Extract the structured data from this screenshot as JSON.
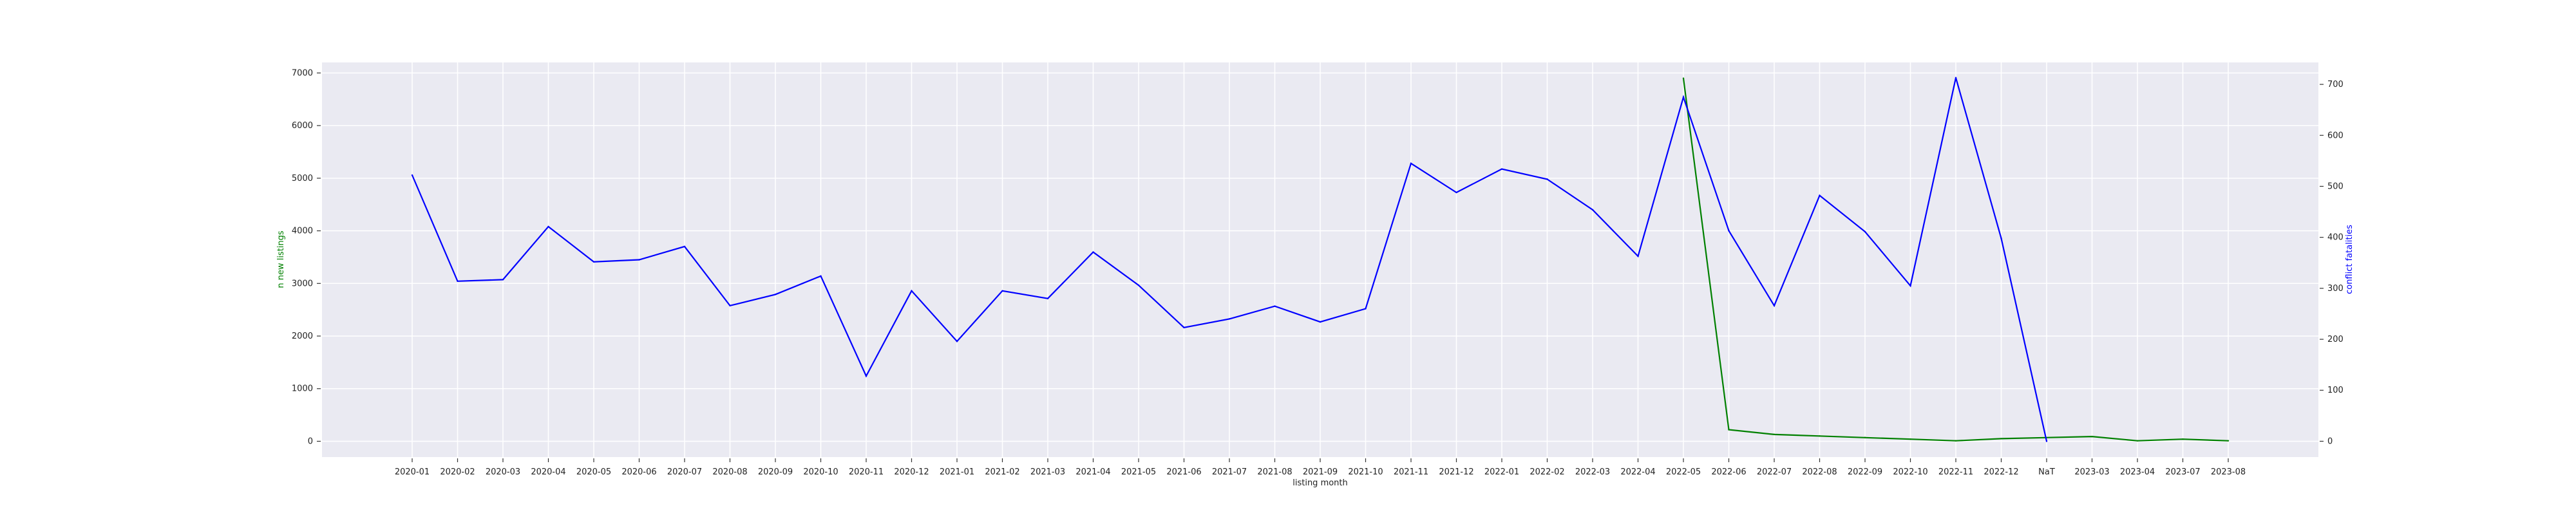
{
  "chart_data": {
    "type": "line",
    "xlabel": "listing month",
    "ylabel_left": "n new listings",
    "ylabel_right": "conflict fatalities",
    "grid": true,
    "categories": [
      "2020-01",
      "2020-02",
      "2020-03",
      "2020-04",
      "2020-05",
      "2020-06",
      "2020-07",
      "2020-08",
      "2020-09",
      "2020-10",
      "2020-11",
      "2020-12",
      "2021-01",
      "2021-02",
      "2021-03",
      "2021-04",
      "2021-05",
      "2021-06",
      "2021-07",
      "2021-08",
      "2021-09",
      "2021-10",
      "2021-11",
      "2021-12",
      "2022-01",
      "2022-02",
      "2022-03",
      "2022-04",
      "2022-05",
      "2022-06",
      "2022-07",
      "2022-08",
      "2022-09",
      "2022-10",
      "2022-11",
      "2022-12",
      "NaT",
      "2023-03",
      "2023-04",
      "2023-07",
      "2023-08"
    ],
    "y_left": {
      "ylim": [
        -300,
        7200
      ],
      "ticks": [
        0,
        1000,
        2000,
        3000,
        4000,
        5000,
        6000,
        7000
      ]
    },
    "y_right": {
      "ylim": [
        -31,
        743
      ],
      "ticks": [
        0,
        100,
        200,
        300,
        400,
        500,
        600,
        700
      ]
    },
    "series": [
      {
        "axis": "left",
        "color": "#008000",
        "values": [
          null,
          null,
          null,
          null,
          null,
          null,
          null,
          null,
          null,
          null,
          null,
          null,
          null,
          null,
          null,
          null,
          null,
          null,
          null,
          null,
          null,
          null,
          null,
          null,
          null,
          null,
          null,
          null,
          6900,
          220,
          130,
          100,
          70,
          40,
          10,
          50,
          null,
          90,
          10,
          40,
          10
        ]
      },
      {
        "axis": "right",
        "color": "#0000ff",
        "values": [
          522,
          314,
          317,
          421,
          352,
          356,
          382,
          266,
          288,
          324,
          128,
          295,
          196,
          295,
          280,
          371,
          306,
          223,
          240,
          265,
          234,
          260,
          545,
          488,
          534,
          514,
          454,
          363,
          675,
          413,
          266,
          482,
          411,
          305,
          713,
          398,
          0,
          null,
          null,
          null,
          null
        ]
      }
    ]
  }
}
